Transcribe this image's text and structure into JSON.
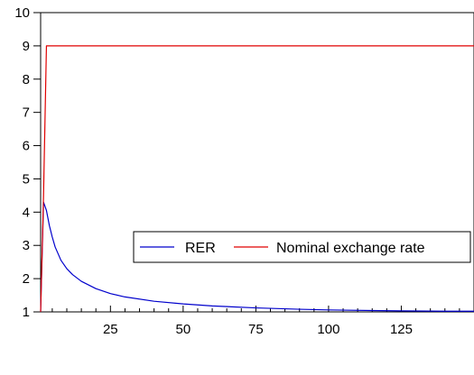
{
  "chart_data": {
    "type": "line",
    "title": "",
    "xlabel": "",
    "ylabel": "",
    "xlim": [
      1,
      150
    ],
    "ylim": [
      1,
      10
    ],
    "x_ticks": [
      25,
      50,
      75,
      100,
      125
    ],
    "y_ticks": [
      1,
      2,
      3,
      4,
      5,
      6,
      7,
      8,
      9,
      10
    ],
    "grid": false,
    "legend": {
      "placement": "center-right",
      "entries": [
        "RER",
        "Nominal exchange rate"
      ]
    },
    "series": [
      {
        "name": "RER",
        "color": "#0000cc",
        "x": [
          1,
          2,
          3,
          4,
          5,
          6,
          8,
          10,
          12,
          15,
          20,
          25,
          30,
          40,
          50,
          60,
          75,
          90,
          100,
          115,
          125,
          140,
          150
        ],
        "y": [
          1.0,
          4.3,
          4.05,
          3.6,
          3.25,
          2.95,
          2.55,
          2.3,
          2.12,
          1.92,
          1.7,
          1.55,
          1.45,
          1.32,
          1.24,
          1.18,
          1.12,
          1.08,
          1.06,
          1.04,
          1.03,
          1.02,
          1.02
        ]
      },
      {
        "name": "Nominal exchange rate",
        "color": "#e00000",
        "x": [
          1,
          2,
          3,
          150
        ],
        "y": [
          1.0,
          4.5,
          9.0,
          9.0
        ]
      }
    ]
  }
}
